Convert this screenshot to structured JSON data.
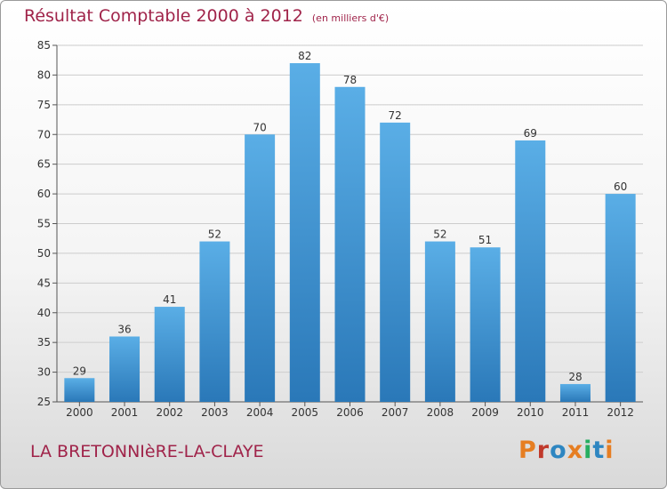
{
  "header": {
    "title": "Résultat Comptable 2000 à 2012",
    "unit": "(en milliers d'€)"
  },
  "footer": {
    "commune": "LA BRETONNIèRE-LA-CLAYE",
    "logo": "Proxiti",
    "logo_colors": [
      "#e67e22",
      "#c0392b",
      "#2e86c1",
      "#e67e22",
      "#27ae60",
      "#2e86c1",
      "#e67e22"
    ]
  },
  "colors": {
    "bar_top": "#5aaee6",
    "bar_bottom": "#2a78b8",
    "grid": "#cccccc",
    "text": "#333333"
  },
  "chart_data": {
    "type": "bar",
    "title": "Résultat Comptable 2000 à 2012",
    "subtitle": "(en milliers d'€)",
    "xlabel": "",
    "ylabel": "",
    "categories": [
      "2000",
      "2001",
      "2002",
      "2003",
      "2004",
      "2005",
      "2006",
      "2007",
      "2008",
      "2009",
      "2010",
      "2011",
      "2012"
    ],
    "values": [
      29,
      36,
      41,
      52,
      70,
      82,
      78,
      72,
      52,
      51,
      69,
      28,
      60
    ],
    "ylim": [
      25,
      85
    ],
    "yticks": [
      25,
      30,
      35,
      40,
      45,
      50,
      55,
      60,
      65,
      70,
      75,
      80,
      85
    ],
    "grid": true,
    "legend": "none"
  }
}
